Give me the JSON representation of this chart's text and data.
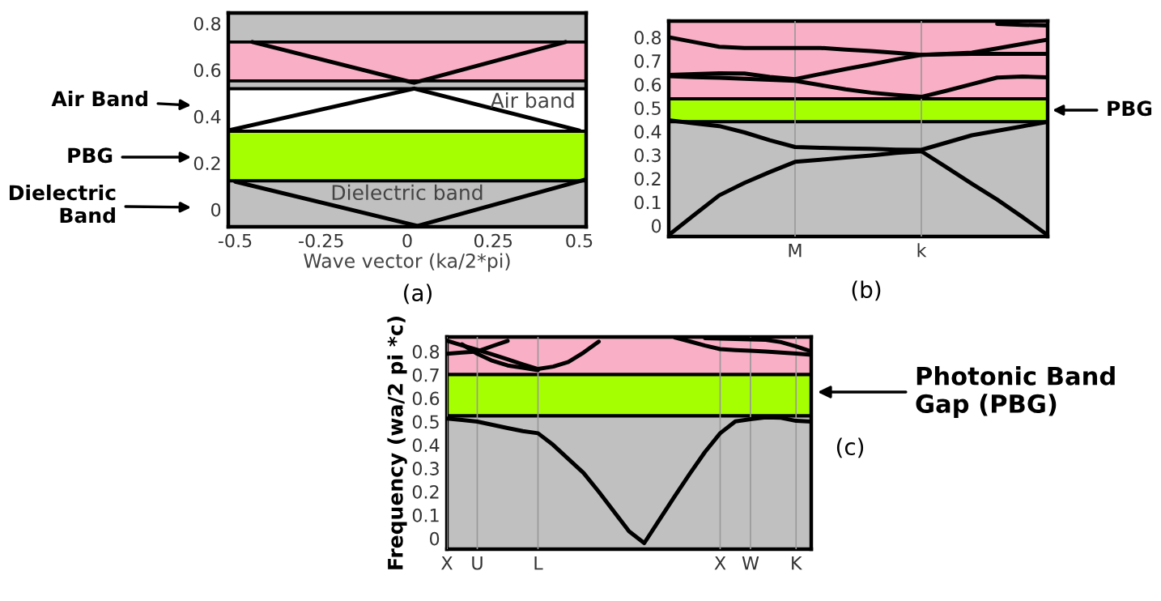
{
  "chart_data": [
    {
      "type": "line",
      "xlabel": "Wave vector (ka/2*pi)",
      "xlim": [
        -0.52,
        0.52
      ],
      "ylim": [
        -0.074,
        0.845
      ],
      "xticks": [
        -0.5,
        -0.25,
        0,
        0.25,
        0.5
      ],
      "yticks": [
        0,
        0.2,
        0.4,
        0.6,
        0.8
      ],
      "bands": [
        {
          "axis": "y",
          "from": 0.72,
          "to": 0.845,
          "color": "#c0c0c0"
        },
        {
          "axis": "y",
          "from": 0.553,
          "to": 0.72,
          "color": "#f9afc5"
        },
        {
          "axis": "y",
          "from": 0.519,
          "to": 0.553,
          "color": "#c0c0c0"
        },
        {
          "axis": "y",
          "from": 0.337,
          "to": 0.519,
          "color": "#ffffff",
          "label": "Air band"
        },
        {
          "axis": "y",
          "from": 0.123,
          "to": 0.337,
          "color": "#a6ff00"
        },
        {
          "axis": "y",
          "from": -0.074,
          "to": 0.123,
          "color": "#c0c0c0",
          "label": "Dielectric band"
        }
      ],
      "series": [
        {
          "color": "#000000",
          "x": [
            -0.45,
            0.02,
            0.46
          ],
          "values": [
            0.72,
            0.545,
            0.72
          ]
        },
        {
          "color": "#000000",
          "x": [
            -0.52,
            0.02,
            0.5
          ],
          "values": [
            0.34,
            0.52,
            0.34
          ]
        },
        {
          "color": "#000000",
          "x": [
            -0.5,
            0.03,
            0.52
          ],
          "values": [
            0.12,
            -0.07,
            0.13
          ]
        }
      ],
      "annotations": [
        "Air Band",
        "PBG",
        "Dielectric\nBand",
        "(a)"
      ],
      "grid": false
    },
    {
      "type": "line",
      "categories": [
        null,
        null,
        null,
        null,
        null,
        "M",
        null,
        null,
        null,
        null,
        "k",
        null,
        null,
        null,
        null,
        null
      ],
      "ylim": [
        -0.046,
        0.869
      ],
      "yticks": [
        0,
        0.1,
        0.2,
        0.3,
        0.4,
        0.5,
        0.6,
        0.7,
        0.8
      ],
      "bands": [
        {
          "axis": "y",
          "from": 0.539,
          "to": 0.869,
          "color": "#f9afc5"
        },
        {
          "axis": "y",
          "from": 0.441,
          "to": 0.539,
          "color": "#a6ff00"
        },
        {
          "axis": "y",
          "from": -0.046,
          "to": 0.441,
          "color": "#c0c0c0"
        }
      ],
      "series": [
        {
          "color": "#000000",
          "values": [
            0.8,
            0.78,
            0.76,
            0.755,
            0.755,
            0.755,
            0.755,
            0.748,
            0.742,
            0.734,
            0.725,
            0.73,
            0.735,
            0.753,
            0.772,
            0.79
          ]
        },
        {
          "color": "#000000",
          "values": [
            0.64,
            0.644,
            0.647,
            0.646,
            0.632,
            0.622,
            0.644,
            0.665,
            0.685,
            0.706,
            0.725,
            0.728,
            0.73,
            0.73,
            0.73,
            0.73
          ]
        },
        {
          "color": "#000000",
          "values": [
            0.635,
            0.631,
            0.628,
            0.624,
            0.62,
            0.615,
            0.597,
            0.579,
            0.565,
            0.555,
            0.547,
            0.573,
            0.601,
            0.629,
            0.633,
            0.63
          ]
        },
        {
          "color": "#000000",
          "values": [
            null,
            null,
            null,
            null,
            null,
            null,
            null,
            null,
            null,
            null,
            null,
            null,
            null,
            0.857,
            0.853,
            0.85
          ]
        },
        {
          "color": "#000000",
          "values": [
            0.448,
            0.435,
            0.423,
            0.396,
            0.363,
            0.334,
            0.331,
            0.328,
            0.326,
            0.323,
            0.322,
            0.353,
            0.384,
            0.403,
            0.422,
            0.441
          ]
        },
        {
          "color": "#000000",
          "values": [
            -0.04,
            0.045,
            0.129,
            0.182,
            0.228,
            0.271,
            0.28,
            0.289,
            0.298,
            0.309,
            0.316,
            0.248,
            0.178,
            0.111,
            0.037,
            -0.04
          ]
        }
      ],
      "annotations": [
        "PBG",
        "(b)"
      ],
      "grid": "x"
    },
    {
      "type": "line",
      "ylabel": "Frequency (wa/2 pi *c)",
      "categories": [
        "X",
        null,
        "U",
        null,
        null,
        null,
        "L",
        null,
        null,
        null,
        null,
        null,
        null,
        null,
        null,
        null,
        null,
        null,
        "X",
        null,
        "W",
        null,
        null,
        "K",
        null
      ],
      "ylim": [
        -0.046,
        0.862
      ],
      "yticks": [
        0,
        0.1,
        0.2,
        0.3,
        0.4,
        0.5,
        0.6,
        0.7,
        0.8
      ],
      "bands": [
        {
          "axis": "y",
          "from": 0.701,
          "to": 0.862,
          "color": "#f9afc5"
        },
        {
          "axis": "y",
          "from": 0.524,
          "to": 0.701,
          "color": "#a6ff00"
        },
        {
          "axis": "y",
          "from": -0.046,
          "to": 0.524,
          "color": "#c0c0c0"
        }
      ],
      "series": [
        {
          "color": "#000000",
          "values": [
            0.513,
            0.507,
            0.5,
            0.486,
            0.472,
            0.459,
            0.45,
            0.4,
            0.34,
            0.28,
            0.2,
            0.115,
            0.03,
            -0.02,
            0.08,
            0.18,
            0.277,
            0.37,
            0.45,
            0.501,
            0.51,
            0.518,
            0.516,
            0.503,
            0.5
          ]
        },
        {
          "color": "#000000",
          "values": [
            0.846,
            0.826,
            0.807,
            0.787,
            0.766,
            0.745,
            0.725,
            0.735,
            0.755,
            0.795,
            0.842,
            null,
            null,
            null,
            null,
            null,
            null,
            null,
            null,
            null,
            null,
            null,
            null,
            null,
            null
          ]
        },
        {
          "color": "#000000",
          "values": [
            0.79,
            0.795,
            0.8,
            0.823,
            0.845,
            null,
            null,
            null,
            null,
            null,
            null,
            null,
            null,
            null,
            null,
            null,
            null,
            null,
            null,
            null,
            null,
            null,
            null,
            null,
            null
          ]
        },
        {
          "color": "#000000",
          "values": [
            null,
            0.83,
            0.79,
            0.76,
            0.74,
            0.73,
            0.72,
            null,
            null,
            null,
            null,
            null,
            null,
            null,
            null,
            null,
            null,
            null,
            null,
            null,
            null,
            null,
            null,
            null,
            null
          ]
        },
        {
          "color": "#000000",
          "values": [
            null,
            null,
            null,
            null,
            null,
            null,
            null,
            null,
            null,
            null,
            null,
            null,
            null,
            null,
            null,
            0.86,
            0.843,
            0.825,
            0.81,
            0.806,
            0.803,
            0.8,
            0.795,
            0.791,
            0.786
          ]
        },
        {
          "color": "#000000",
          "values": [
            null,
            null,
            null,
            null,
            null,
            null,
            null,
            null,
            null,
            null,
            null,
            null,
            null,
            null,
            null,
            null,
            null,
            0.857,
            0.855,
            0.853,
            0.852,
            0.85,
            0.84,
            0.822,
            0.8
          ]
        }
      ],
      "annotations": [
        "Photonic Band\nGap (PBG)",
        "(c)"
      ],
      "grid": "x"
    }
  ]
}
